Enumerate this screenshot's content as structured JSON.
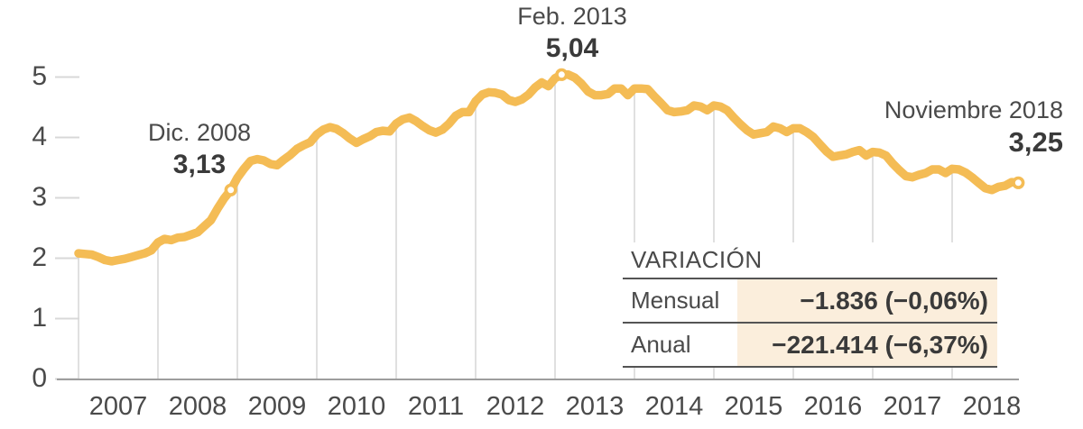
{
  "chart_data": {
    "type": "line",
    "x_range": [
      "2007-01",
      "2018-11"
    ],
    "x_tick_labels": [
      "2007",
      "2008",
      "2009",
      "2010",
      "2011",
      "2012",
      "2013",
      "2014",
      "2015",
      "2016",
      "2017",
      "2018"
    ],
    "y_tick_labels": [
      "0",
      "1",
      "2",
      "3",
      "4",
      "5"
    ],
    "ylim": [
      0,
      5.6
    ],
    "grid": "vertical-yearly",
    "legend": "none",
    "series": {
      "start": "2007-01",
      "frequency": "monthly",
      "values": [
        2.08,
        2.07,
        2.06,
        2.02,
        1.97,
        1.95,
        1.97,
        1.99,
        2.02,
        2.05,
        2.08,
        2.13,
        2.26,
        2.32,
        2.3,
        2.34,
        2.35,
        2.39,
        2.43,
        2.53,
        2.63,
        2.82,
        2.99,
        3.13,
        3.33,
        3.48,
        3.61,
        3.64,
        3.62,
        3.56,
        3.54,
        3.63,
        3.71,
        3.81,
        3.87,
        3.92,
        4.05,
        4.13,
        4.17,
        4.14,
        4.07,
        3.98,
        3.91,
        3.97,
        4.02,
        4.09,
        4.11,
        4.1,
        4.23,
        4.3,
        4.33,
        4.27,
        4.19,
        4.12,
        4.08,
        4.13,
        4.23,
        4.36,
        4.42,
        4.42,
        4.6,
        4.71,
        4.75,
        4.74,
        4.71,
        4.62,
        4.59,
        4.63,
        4.71,
        4.83,
        4.91,
        4.85,
        4.98,
        5.04,
        5.04,
        4.99,
        4.89,
        4.76,
        4.7,
        4.7,
        4.72,
        4.81,
        4.81,
        4.7,
        4.81,
        4.81,
        4.8,
        4.68,
        4.57,
        4.45,
        4.42,
        4.43,
        4.45,
        4.53,
        4.51,
        4.45,
        4.53,
        4.51,
        4.45,
        4.33,
        4.22,
        4.12,
        4.05,
        4.07,
        4.09,
        4.18,
        4.15,
        4.09,
        4.15,
        4.15,
        4.09,
        4.01,
        3.89,
        3.77,
        3.68,
        3.7,
        3.72,
        3.76,
        3.79,
        3.7,
        3.76,
        3.75,
        3.7,
        3.57,
        3.46,
        3.36,
        3.34,
        3.38,
        3.41,
        3.47,
        3.47,
        3.41,
        3.48,
        3.47,
        3.42,
        3.34,
        3.25,
        3.16,
        3.13,
        3.18,
        3.2,
        3.26,
        3.25
      ]
    },
    "annotations": [
      {
        "date": "Dic. 2008",
        "value_label": "3,13",
        "value": 3.13,
        "month_index": 23
      },
      {
        "date": "Feb. 2013",
        "value_label": "5,04",
        "value": 5.04,
        "month_index": 73
      },
      {
        "date": "Noviembre 2018",
        "value_label": "3,25",
        "value": 3.25,
        "month_index": 142
      }
    ]
  },
  "table": {
    "title": "VARIACIÓN",
    "rows": [
      {
        "label": "Mensual",
        "value": "−1.836 (−0,06%)"
      },
      {
        "label": "Anual",
        "value": "−221.414 (−6,37%)"
      }
    ]
  },
  "colors": {
    "line": "#F4BC55",
    "grid": "#CFCFCF",
    "axis": "#9E9E9E",
    "tick_dash": "#D8D8D8",
    "text": "#4A4A4A",
    "value_text": "#3A3A3A",
    "cell_bg": "#FBEEDC",
    "marker_fill": "#FFFFFF"
  }
}
